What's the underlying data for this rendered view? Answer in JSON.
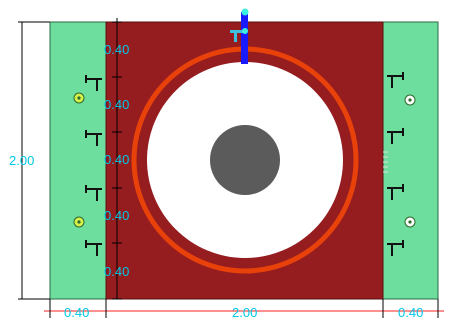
{
  "dimensions": {
    "overall_height": "2.00",
    "row_spacing": [
      "0.40",
      "0.40",
      "0.40",
      "0.40",
      "0.40"
    ],
    "left_side_width": "0.40",
    "center_width": "2.00",
    "right_side_width": "0.40"
  },
  "colors": {
    "side_panel": "#6dde9d",
    "center_panel": "#951c1f",
    "ring": "#e8420a",
    "opening": "#ffffff",
    "core": "#5b5b5b",
    "post": "#1a1aff",
    "dimension_text": "#00c8e6"
  }
}
